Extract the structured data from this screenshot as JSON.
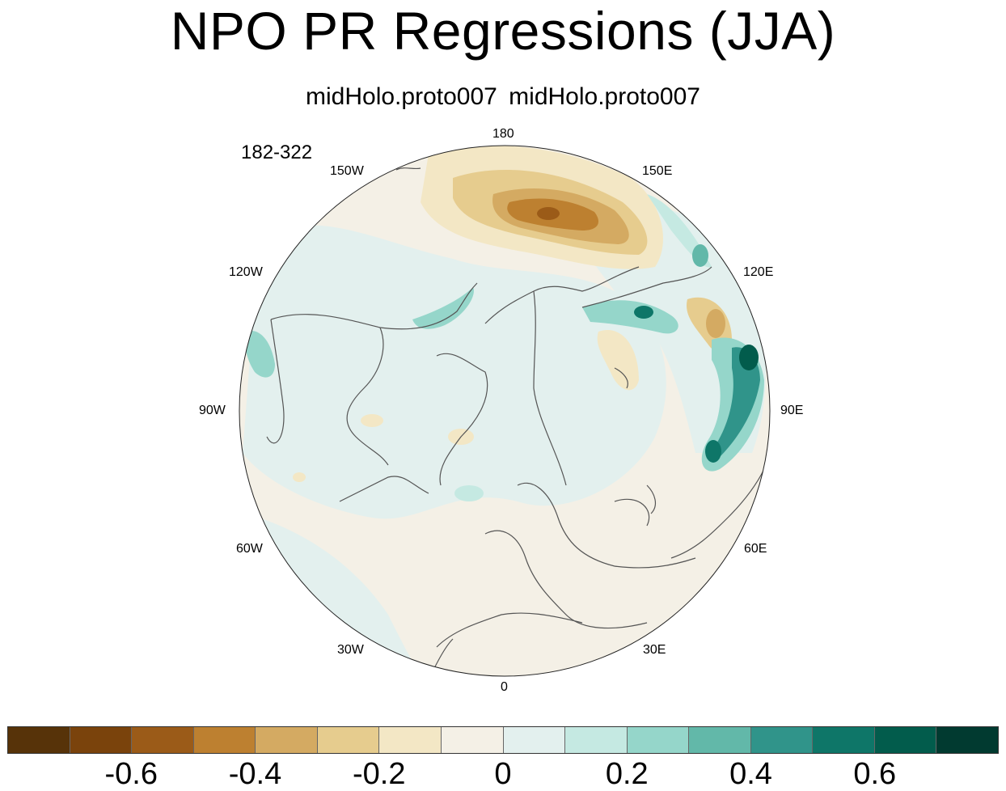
{
  "title": "NPO PR Regressions (JJA)",
  "subtitle": "midHolo.proto007  midHolo.proto007",
  "year_range": "182-322",
  "longitude_labels": {
    "top": "180",
    "upper_left": "150W",
    "upper_right": "150E",
    "left_high": "120W",
    "right_high": "120E",
    "left": "90W",
    "right": "90E",
    "left_low": "60W",
    "right_low": "60E",
    "lower_left": "30W",
    "lower_right": "30E",
    "bottom": "0"
  },
  "colorbar": {
    "colors": [
      "#573309",
      "#7a430c",
      "#9b5b18",
      "#bd8030",
      "#d4aa62",
      "#e6cc8e",
      "#f3e7c5",
      "#f4f0e6",
      "#e3f0ee",
      "#c5e9e2",
      "#95d6ca",
      "#62b8a9",
      "#30948a",
      "#0e7668",
      "#025c4c",
      "#013a30"
    ],
    "labels": [
      "-0.6",
      "-0.4",
      "-0.2",
      "0",
      "0.2",
      "0.4",
      "0.6"
    ]
  },
  "map": {
    "background_color": "#f4f0e6",
    "coastline_color": "#555555"
  }
}
